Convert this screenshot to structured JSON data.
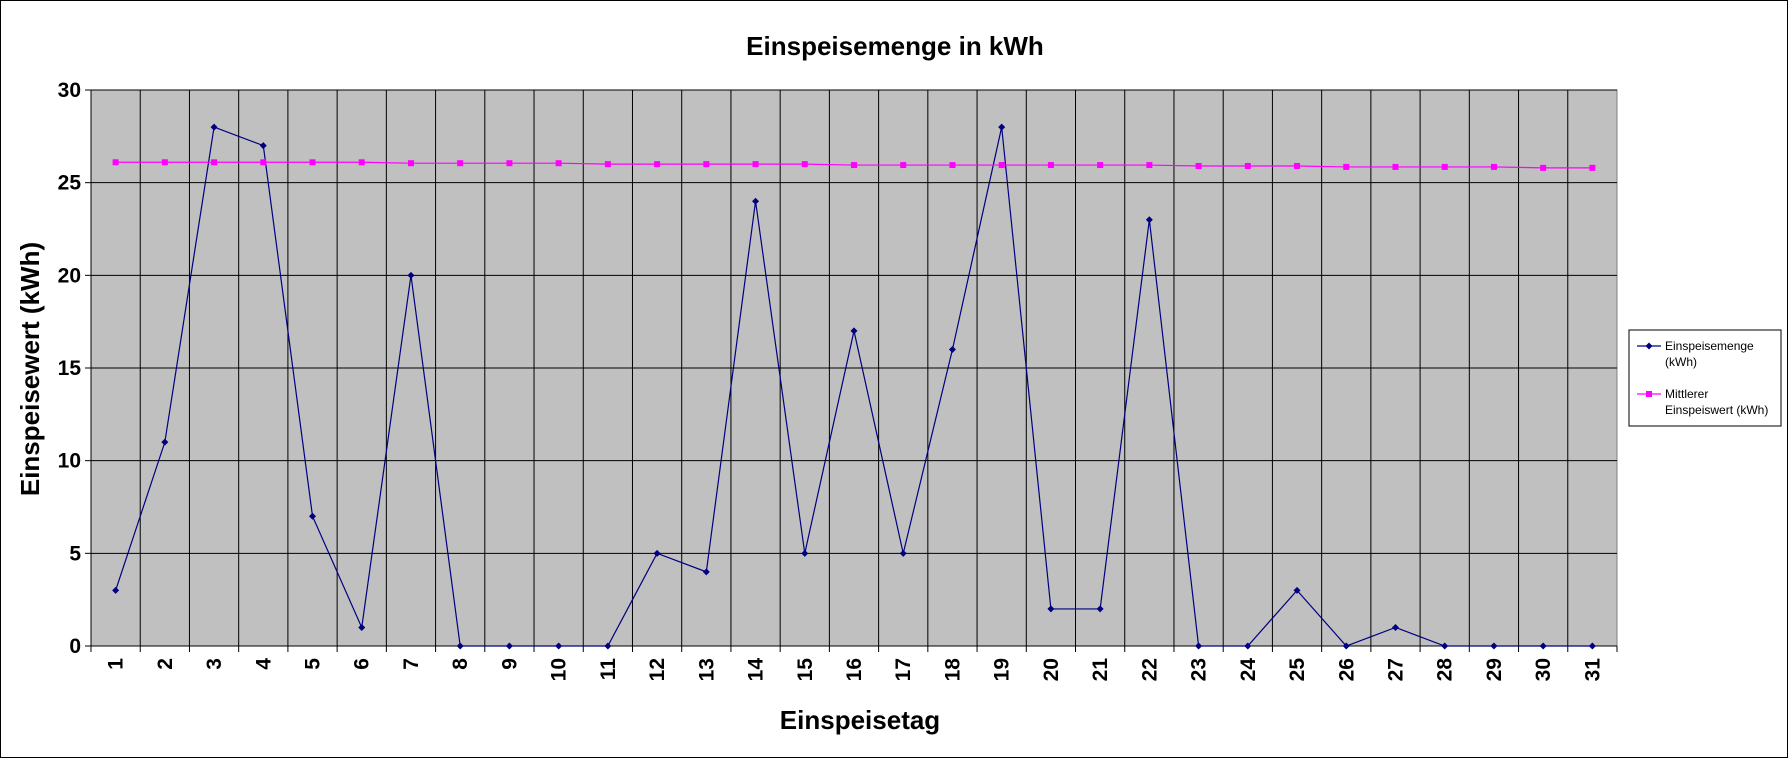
{
  "chart_data": {
    "type": "line",
    "title": "Einspeisemenge in kWh",
    "xlabel": "Einspeisetag",
    "ylabel": "Einspeisewert  (kWh)",
    "categories": [
      "1",
      "2",
      "3",
      "4",
      "5",
      "6",
      "7",
      "8",
      "9",
      "10",
      "11",
      "12",
      "13",
      "14",
      "15",
      "16",
      "17",
      "18",
      "19",
      "20",
      "21",
      "22",
      "23",
      "24",
      "25",
      "26",
      "27",
      "28",
      "29",
      "30",
      "31"
    ],
    "ylim": [
      0,
      30
    ],
    "yticks": [
      0,
      5,
      10,
      15,
      20,
      25,
      30
    ],
    "grid": true,
    "legend_position": "right",
    "plot_background": "#c0c0c0",
    "series": [
      {
        "name": "Einspeisemenge (kWh)",
        "legend_lines": [
          "Einspeisemenge",
          "(kWh)"
        ],
        "color": "#000080",
        "marker": "diamond",
        "values": [
          3,
          11,
          28,
          27,
          7,
          1,
          20,
          0,
          0,
          0,
          0,
          5,
          4,
          24,
          5,
          17,
          5,
          16,
          28,
          2,
          2,
          23,
          0,
          0,
          3,
          0,
          1,
          0,
          0,
          0,
          0
        ]
      },
      {
        "name": "Mittlerer Einspeiswert (kWh)",
        "legend_lines": [
          "Mittlerer",
          "Einspeiswert (kWh)"
        ],
        "color": "#ff00ff",
        "marker": "square",
        "values": [
          26.1,
          26.1,
          26.1,
          26.1,
          26.1,
          26.1,
          26.05,
          26.05,
          26.05,
          26.05,
          26.0,
          26.0,
          26.0,
          26.0,
          26.0,
          25.95,
          25.95,
          25.95,
          25.95,
          25.95,
          25.95,
          25.95,
          25.9,
          25.9,
          25.9,
          25.85,
          25.85,
          25.85,
          25.85,
          25.8,
          25.8
        ]
      }
    ]
  }
}
